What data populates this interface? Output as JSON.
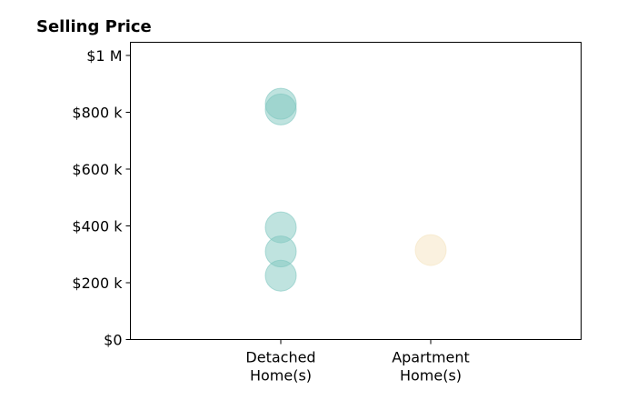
{
  "chart_data": {
    "type": "scatter",
    "title": "Selling Price",
    "xlabel": "",
    "ylabel": "",
    "categories": [
      "Detached\nHome(s)",
      "Apartment\nHome(s)"
    ],
    "ylim": [
      0,
      1000000
    ],
    "y_ticks": [
      {
        "value": 0,
        "label": "$0"
      },
      {
        "value": 200000,
        "label": "$200 k"
      },
      {
        "value": 400000,
        "label": "$400 k"
      },
      {
        "value": 600000,
        "label": "$600 k"
      },
      {
        "value": 800000,
        "label": "$800 k"
      },
      {
        "value": 1000000,
        "label": "$1 M"
      }
    ],
    "grid": false,
    "series": [
      {
        "category": "Detached\nHome(s)",
        "color": "#7fc7bf",
        "values": [
          830000,
          810000,
          395000,
          310000,
          225000
        ]
      },
      {
        "category": "Apartment\nHome(s)",
        "color": "#f5e4bf",
        "values": [
          315000
        ]
      }
    ]
  }
}
